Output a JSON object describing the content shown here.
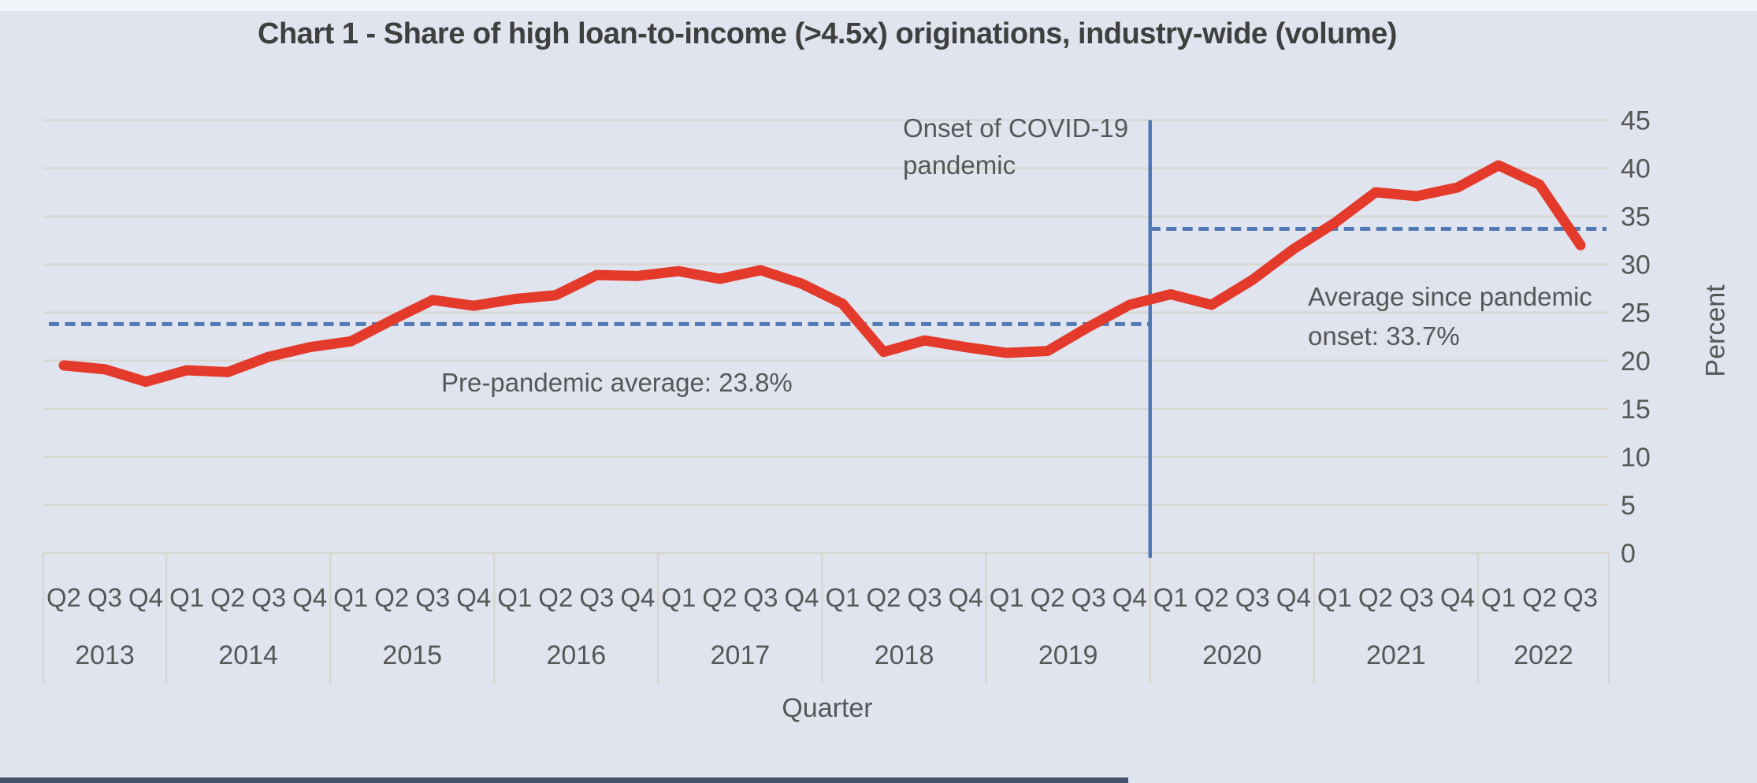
{
  "title": "Chart 1 - Share of high loan-to-income (>4.5x) originations, industry-wide (volume)",
  "colors": {
    "background": "#dfe4ef",
    "series_red": "#e43a2b",
    "reference_blue": "#5078b4",
    "gridline": "#d9d6d0",
    "text_gray": "#575757",
    "title_gray": "#3f3f3f",
    "bottom_bar": "#44546a"
  },
  "chart_data": {
    "type": "line",
    "title": "Chart 1 - Share of high loan-to-income (>4.5x) originations, industry-wide (volume)",
    "xlabel": "Quarter",
    "ylabel": "Percent",
    "ylim": [
      0,
      45
    ],
    "ytick_step": 5,
    "yticks": [
      0,
      5,
      10,
      15,
      20,
      25,
      30,
      35,
      40,
      45
    ],
    "grid": true,
    "legend": "none",
    "years": [
      {
        "year": "2013",
        "quarters": [
          "Q2",
          "Q3",
          "Q4"
        ],
        "values": [
          19.5,
          19.1,
          17.8
        ]
      },
      {
        "year": "2014",
        "quarters": [
          "Q1",
          "Q2",
          "Q3",
          "Q4"
        ],
        "values": [
          19.0,
          18.8,
          20.4,
          21.4
        ]
      },
      {
        "year": "2015",
        "quarters": [
          "Q1",
          "Q2",
          "Q3",
          "Q4"
        ],
        "values": [
          22.0,
          24.2,
          26.3,
          25.7
        ]
      },
      {
        "year": "2016",
        "quarters": [
          "Q1",
          "Q2",
          "Q3",
          "Q4"
        ],
        "values": [
          26.4,
          26.8,
          28.9,
          28.8
        ]
      },
      {
        "year": "2017",
        "quarters": [
          "Q1",
          "Q2",
          "Q3",
          "Q4"
        ],
        "values": [
          29.3,
          28.5,
          29.4,
          28.0
        ]
      },
      {
        "year": "2018",
        "quarters": [
          "Q1",
          "Q2",
          "Q3",
          "Q4"
        ],
        "values": [
          25.9,
          20.9,
          22.1,
          21.4
        ]
      },
      {
        "year": "2019",
        "quarters": [
          "Q1",
          "Q2",
          "Q3",
          "Q4"
        ],
        "values": [
          20.8,
          21.0,
          23.5,
          25.8
        ]
      },
      {
        "year": "2020",
        "quarters": [
          "Q1",
          "Q2",
          "Q3",
          "Q4"
        ],
        "values": [
          26.9,
          25.8,
          28.4,
          31.6
        ]
      },
      {
        "year": "2021",
        "quarters": [
          "Q1",
          "Q2",
          "Q3",
          "Q4"
        ],
        "values": [
          34.3,
          37.5,
          37.1,
          38.0
        ]
      },
      {
        "year": "2022",
        "quarters": [
          "Q1",
          "Q2",
          "Q3"
        ],
        "values": [
          40.3,
          38.3,
          32.0
        ]
      }
    ],
    "annotations": {
      "covid_line_label": "Onset of COVID-19 pandemic",
      "covid_line_position": "between 2019 Q4 and 2020 Q1",
      "pre_pandemic_average_label": "Pre-pandemic average: 23.8%",
      "pre_pandemic_average_value": 23.8,
      "post_pandemic_average_label": "Average since pandemic onset: 33.7%",
      "post_pandemic_average_value": 33.7
    }
  }
}
